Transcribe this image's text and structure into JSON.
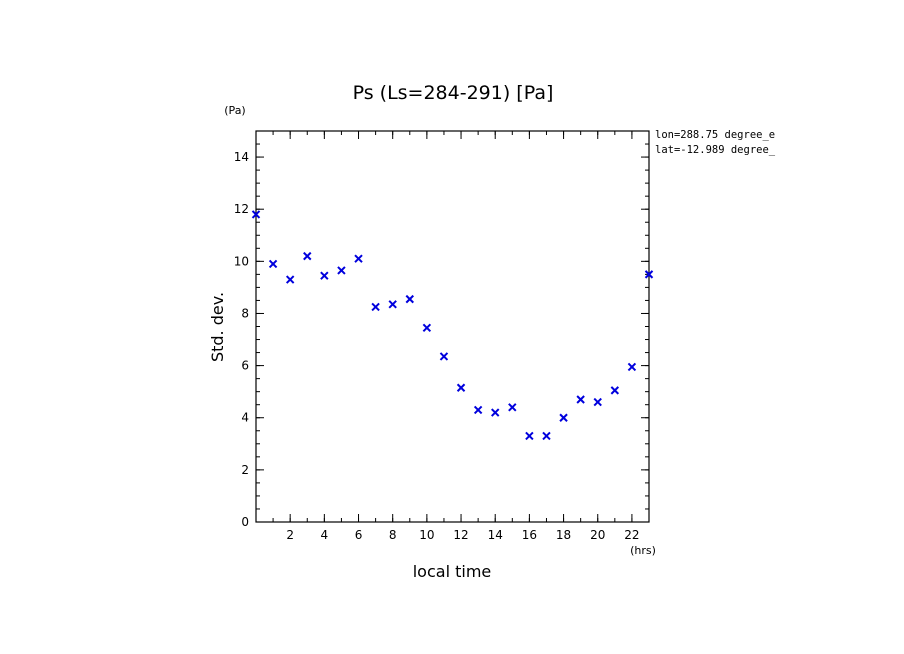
{
  "chart_data": {
    "type": "scatter",
    "title": "Ps (Ls=284-291) [Pa]",
    "xlabel": "local time",
    "ylabel": "Std. dev.",
    "x_unit": "(hrs)",
    "y_unit": "(Pa)",
    "xlim": [
      0,
      23
    ],
    "ylim": [
      0,
      15
    ],
    "x_ticks": [
      2,
      4,
      6,
      8,
      10,
      12,
      14,
      16,
      18,
      20,
      22
    ],
    "y_ticks": [
      0,
      2,
      4,
      6,
      8,
      10,
      12,
      14
    ],
    "annotations": [
      "lon=288.75 degree_e",
      "lat=-12.989 degree_"
    ],
    "grid": false,
    "marker": "x",
    "marker_color": "#0000dd",
    "series": [
      {
        "x": [
          0,
          1,
          2,
          3,
          4,
          5,
          6,
          7,
          8,
          9,
          10,
          11,
          12,
          13,
          14,
          15,
          16,
          17,
          18,
          19,
          20,
          21,
          22,
          23
        ],
        "values": [
          11.8,
          9.9,
          9.3,
          10.2,
          9.45,
          9.65,
          10.1,
          8.25,
          8.35,
          8.55,
          7.45,
          6.35,
          5.15,
          4.3,
          4.2,
          4.4,
          3.3,
          3.3,
          4.0,
          4.7,
          4.6,
          5.05,
          5.95,
          9.5
        ]
      }
    ]
  }
}
